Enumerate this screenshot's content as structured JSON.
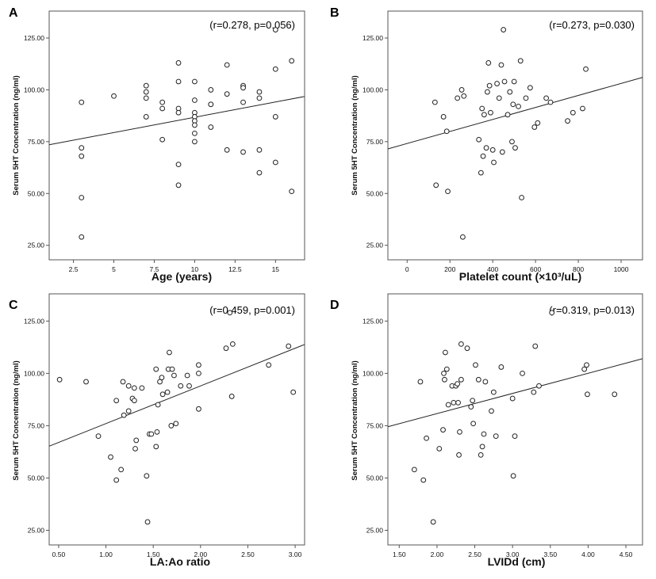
{
  "chart_data": [
    {
      "panel": "A",
      "type": "scatter",
      "stat_text": "(r=0.278, p=0.056)",
      "xlabel": "Age (years)",
      "ylabel": "Serum 5HT Concentration (ng/ml)",
      "xticks": [
        "2.5",
        "5",
        "7.5",
        "10",
        "12.5",
        "15"
      ],
      "yticks": [
        "25.00",
        "50.00",
        "75.00",
        "100.00",
        "125.00"
      ],
      "xlim": [
        1.0,
        16.8
      ],
      "ylim": [
        18,
        138
      ],
      "grid": false,
      "fit_line": [
        [
          1.0,
          73.5
        ],
        [
          16.8,
          96.8
        ]
      ],
      "points": [
        [
          3,
          94
        ],
        [
          3,
          72
        ],
        [
          3,
          68
        ],
        [
          3,
          48
        ],
        [
          3,
          29
        ],
        [
          5,
          97
        ],
        [
          7,
          102
        ],
        [
          7,
          99
        ],
        [
          7,
          96
        ],
        [
          7,
          87
        ],
        [
          8,
          94
        ],
        [
          8,
          91
        ],
        [
          8,
          76
        ],
        [
          9,
          113
        ],
        [
          9,
          104
        ],
        [
          9,
          91
        ],
        [
          9,
          89
        ],
        [
          9,
          64
        ],
        [
          9,
          54
        ],
        [
          10,
          104
        ],
        [
          10,
          95
        ],
        [
          10,
          89
        ],
        [
          10,
          87
        ],
        [
          10,
          85
        ],
        [
          10,
          83
        ],
        [
          10,
          79
        ],
        [
          10,
          75
        ],
        [
          11,
          100
        ],
        [
          11,
          93
        ],
        [
          11,
          93
        ],
        [
          11,
          82
        ],
        [
          12,
          112
        ],
        [
          12,
          98
        ],
        [
          12,
          71
        ],
        [
          13,
          102
        ],
        [
          13,
          101
        ],
        [
          13,
          94
        ],
        [
          13,
          70
        ],
        [
          14,
          99
        ],
        [
          14,
          96
        ],
        [
          14,
          71
        ],
        [
          14,
          60
        ],
        [
          15,
          129
        ],
        [
          15,
          110
        ],
        [
          15,
          87
        ],
        [
          15,
          65
        ],
        [
          16,
          114
        ],
        [
          16,
          51
        ]
      ]
    },
    {
      "panel": "B",
      "type": "scatter",
      "stat_text": "(r=0.273, p=0.030)",
      "xlabel": "Platelet count (×10³/uL)",
      "ylabel": "Serum 5HT Concentration (ng/ml)",
      "xticks": [
        "0",
        "200",
        "400",
        "600",
        "800",
        "1000"
      ],
      "yticks": [
        "25.00",
        "50.00",
        "75.00",
        "100.00",
        "125.00"
      ],
      "xlim": [
        -90,
        1100
      ],
      "ylim": [
        18,
        138
      ],
      "grid": false,
      "fit_line": [
        [
          -90,
          71.5
        ],
        [
          1100,
          106.0
        ]
      ],
      "points": [
        [
          130,
          94
        ],
        [
          135,
          54
        ],
        [
          170,
          87
        ],
        [
          185,
          80
        ],
        [
          190,
          51
        ],
        [
          235,
          96
        ],
        [
          255,
          100
        ],
        [
          260,
          29
        ],
        [
          265,
          97
        ],
        [
          335,
          76
        ],
        [
          345,
          60
        ],
        [
          350,
          91
        ],
        [
          355,
          68
        ],
        [
          360,
          88
        ],
        [
          370,
          72
        ],
        [
          375,
          99
        ],
        [
          380,
          113
        ],
        [
          385,
          102
        ],
        [
          390,
          89
        ],
        [
          400,
          71
        ],
        [
          405,
          65
        ],
        [
          420,
          103
        ],
        [
          430,
          96
        ],
        [
          440,
          112
        ],
        [
          445,
          70
        ],
        [
          450,
          129
        ],
        [
          455,
          104
        ],
        [
          470,
          88
        ],
        [
          480,
          99
        ],
        [
          490,
          75
        ],
        [
          495,
          93
        ],
        [
          500,
          104
        ],
        [
          505,
          72
        ],
        [
          520,
          92
        ],
        [
          530,
          114
        ],
        [
          535,
          48
        ],
        [
          555,
          96
        ],
        [
          575,
          101
        ],
        [
          595,
          82
        ],
        [
          610,
          84
        ],
        [
          650,
          96
        ],
        [
          670,
          94
        ],
        [
          750,
          85
        ],
        [
          775,
          89
        ],
        [
          820,
          91
        ],
        [
          835,
          110
        ]
      ]
    },
    {
      "panel": "C",
      "type": "scatter",
      "stat_text": "(r=0.459, p=0.001)",
      "xlabel": "LA:Ao ratio",
      "ylabel": "Serum 5HT Concentration (ng/ml)",
      "xticks": [
        "0.50",
        "1.00",
        "1.50",
        "2.00",
        "2.50",
        "3.00"
      ],
      "yticks": [
        "25.00",
        "50.00",
        "75.00",
        "100.00",
        "125.00"
      ],
      "xlim": [
        0.4,
        3.1
      ],
      "ylim": [
        18,
        138
      ],
      "grid": false,
      "fit_line": [
        [
          0.4,
          65.2
        ],
        [
          3.1,
          113.8
        ]
      ],
      "points": [
        [
          0.51,
          97
        ],
        [
          0.79,
          96
        ],
        [
          0.92,
          70
        ],
        [
          1.05,
          60
        ],
        [
          1.11,
          87
        ],
        [
          1.11,
          49
        ],
        [
          1.16,
          54
        ],
        [
          1.18,
          96
        ],
        [
          1.19,
          80
        ],
        [
          1.24,
          94
        ],
        [
          1.24,
          82
        ],
        [
          1.28,
          88
        ],
        [
          1.3,
          87
        ],
        [
          1.3,
          93
        ],
        [
          1.31,
          64
        ],
        [
          1.32,
          68
        ],
        [
          1.38,
          93
        ],
        [
          1.43,
          51
        ],
        [
          1.44,
          29
        ],
        [
          1.46,
          71
        ],
        [
          1.48,
          71
        ],
        [
          1.53,
          65
        ],
        [
          1.54,
          72
        ],
        [
          1.53,
          102
        ],
        [
          1.55,
          85
        ],
        [
          1.57,
          96
        ],
        [
          1.59,
          98
        ],
        [
          1.6,
          90
        ],
        [
          1.65,
          91
        ],
        [
          1.66,
          102
        ],
        [
          1.67,
          110
        ],
        [
          1.69,
          75
        ],
        [
          1.7,
          102
        ],
        [
          1.72,
          99
        ],
        [
          1.74,
          76
        ],
        [
          1.79,
          94
        ],
        [
          1.86,
          99
        ],
        [
          1.88,
          94
        ],
        [
          1.98,
          104
        ],
        [
          1.98,
          100
        ],
        [
          1.98,
          83
        ],
        [
          2.27,
          112
        ],
        [
          2.31,
          129
        ],
        [
          2.33,
          89
        ],
        [
          2.34,
          114
        ],
        [
          2.72,
          104
        ],
        [
          2.93,
          113
        ],
        [
          2.98,
          91
        ]
      ]
    },
    {
      "panel": "D",
      "type": "scatter",
      "stat_text": "(r=0.319, p=0.013)",
      "xlabel": "LVIDd (cm)",
      "ylabel": "Serum 5HT Concentration (ng/ml)",
      "xticks": [
        "1.50",
        "2.00",
        "2.50",
        "3.00",
        "3.50",
        "4.00",
        "4.50"
      ],
      "yticks": [
        "25.00",
        "50.00",
        "75.00",
        "100.00",
        "125.00"
      ],
      "xlim": [
        1.35,
        4.72
      ],
      "ylim": [
        18,
        138
      ],
      "grid": false,
      "fit_line": [
        [
          1.35,
          74.5
        ],
        [
          4.72,
          107.0
        ]
      ],
      "points": [
        [
          1.7,
          54
        ],
        [
          1.78,
          96
        ],
        [
          1.82,
          49
        ],
        [
          1.86,
          69
        ],
        [
          1.95,
          29
        ],
        [
          2.03,
          64
        ],
        [
          2.08,
          73
        ],
        [
          2.09,
          100
        ],
        [
          2.1,
          97
        ],
        [
          2.11,
          110
        ],
        [
          2.13,
          102
        ],
        [
          2.15,
          85
        ],
        [
          2.2,
          94
        ],
        [
          2.22,
          86
        ],
        [
          2.25,
          94
        ],
        [
          2.27,
          95
        ],
        [
          2.28,
          86
        ],
        [
          2.29,
          61
        ],
        [
          2.3,
          72
        ],
        [
          2.32,
          114
        ],
        [
          2.32,
          97
        ],
        [
          2.4,
          112
        ],
        [
          2.45,
          84
        ],
        [
          2.47,
          87
        ],
        [
          2.48,
          76
        ],
        [
          2.51,
          104
        ],
        [
          2.55,
          97
        ],
        [
          2.58,
          61
        ],
        [
          2.6,
          65
        ],
        [
          2.62,
          71
        ],
        [
          2.64,
          96
        ],
        [
          2.72,
          82
        ],
        [
          2.75,
          91
        ],
        [
          2.78,
          70
        ],
        [
          2.85,
          103
        ],
        [
          3.0,
          88
        ],
        [
          3.01,
          51
        ],
        [
          3.03,
          70
        ],
        [
          3.13,
          100
        ],
        [
          3.28,
          91
        ],
        [
          3.3,
          113
        ],
        [
          3.35,
          94
        ],
        [
          3.52,
          129
        ],
        [
          3.95,
          102
        ],
        [
          3.98,
          104
        ],
        [
          3.99,
          90
        ],
        [
          4.35,
          90
        ]
      ]
    }
  ]
}
